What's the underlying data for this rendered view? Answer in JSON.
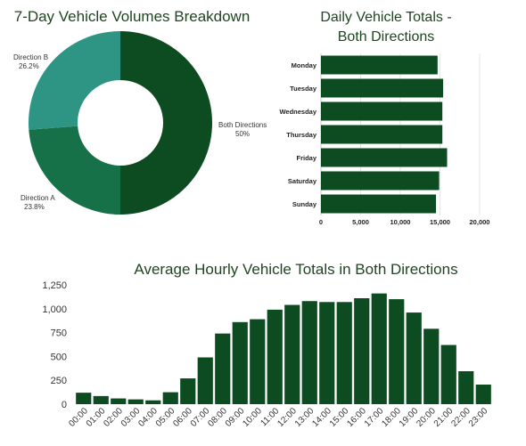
{
  "chart_data": [
    {
      "type": "pie",
      "title": "7-Day Vehicle Volumes Breakdown",
      "slices": [
        {
          "label": "Both Directions",
          "value_label": "50%",
          "value": 50,
          "color": "#0d4b20"
        },
        {
          "label": "Direction A",
          "value_label": "23.8%",
          "value": 23.8,
          "color": "#177148"
        },
        {
          "label": "Direction B",
          "value_label": "26.2%",
          "value": 26.2,
          "color": "#2e9584"
        }
      ]
    },
    {
      "type": "bar",
      "orientation": "horizontal",
      "title_lines": [
        "Daily Vehicle Totals -",
        "Both Directions"
      ],
      "categories": [
        "Monday",
        "Tuesday",
        "Wednesday",
        "Thursday",
        "Friday",
        "Saturday",
        "Sunday"
      ],
      "values": [
        14700,
        15400,
        15300,
        15300,
        15900,
        14900,
        14500
      ],
      "xlim": [
        0,
        20000
      ],
      "xticks": [
        0,
        5000,
        10000,
        15000,
        20000
      ],
      "xtick_labels": [
        "0",
        "5,000",
        "10,000",
        "15,000",
        "20,000"
      ],
      "color": "#0d4b20"
    },
    {
      "type": "bar",
      "title": "Average Hourly Vehicle Totals in Both Directions",
      "categories": [
        "00:00",
        "01:00",
        "02:00",
        "03:00",
        "04:00",
        "05:00",
        "06:00",
        "07:00",
        "08:00",
        "09:00",
        "10:00",
        "11:00",
        "12:00",
        "13:00",
        "14:00",
        "15:00",
        "16:00",
        "17:00",
        "18:00",
        "19:00",
        "20:00",
        "21:00",
        "22:00",
        "23:00"
      ],
      "values": [
        120,
        85,
        60,
        50,
        40,
        125,
        270,
        490,
        740,
        860,
        890,
        990,
        1040,
        1080,
        1070,
        1070,
        1110,
        1160,
        1100,
        960,
        790,
        620,
        345,
        205
      ],
      "ylim": [
        0,
        1250
      ],
      "yticks": [
        0,
        250,
        500,
        750,
        1000,
        1250
      ],
      "ytick_labels": [
        "0",
        "250",
        "500",
        "750",
        "1,000",
        "1,250"
      ],
      "color": "#0d4b20"
    }
  ]
}
